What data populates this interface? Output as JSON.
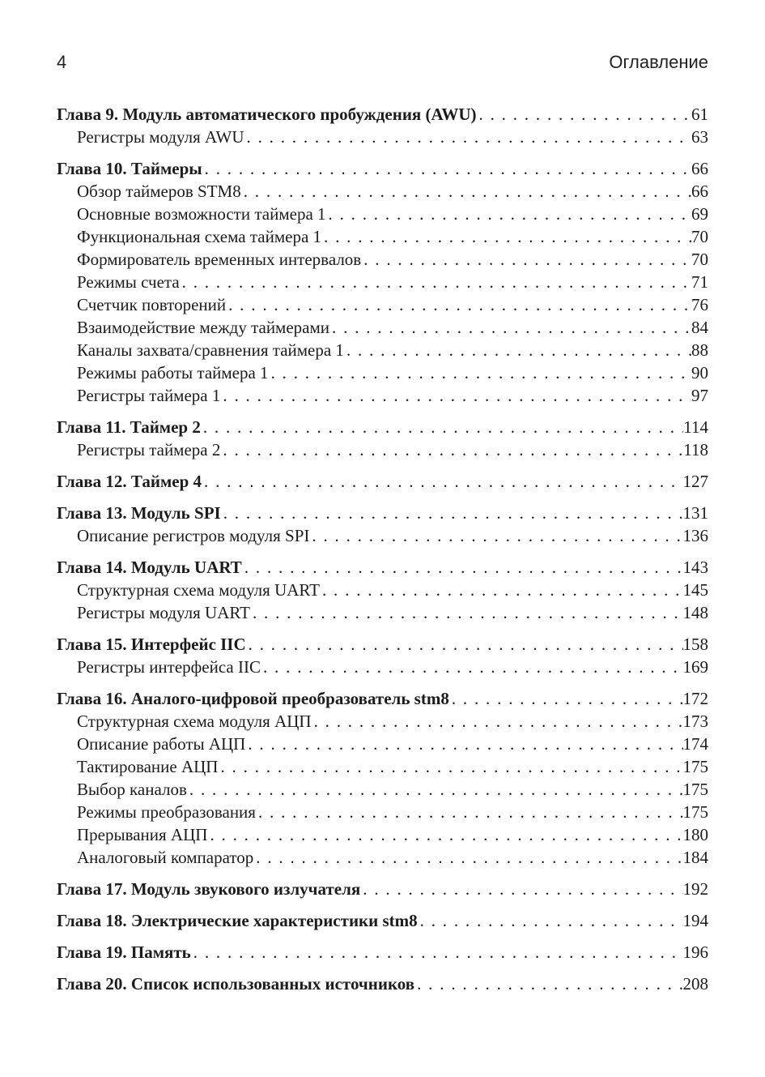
{
  "header": {
    "page_number": "4",
    "title": "Оглавление"
  },
  "colors": {
    "text": "#1c1c1c",
    "background": "#ffffff"
  },
  "toc": {
    "entries": [
      {
        "level": "chapter",
        "label": "Глава 9. Модуль автоматического пробуждения (AWU)",
        "page": "61"
      },
      {
        "level": "sub",
        "label": "Регистры модуля AWU",
        "page": "63"
      },
      {
        "level": "chapter",
        "label": "Глава 10. Таймеры",
        "page": "66"
      },
      {
        "level": "sub",
        "label": "Обзор таймеров STM8",
        "page": "66"
      },
      {
        "level": "sub",
        "label": "Основные возможности таймера 1",
        "page": "69"
      },
      {
        "level": "sub",
        "label": "Функциональная схема таймера 1",
        "page": "70"
      },
      {
        "level": "sub",
        "label": "Формирователь временных интервалов",
        "page": "70"
      },
      {
        "level": "sub",
        "label": "Режимы счета",
        "page": "71"
      },
      {
        "level": "sub",
        "label": "Счетчик повторений",
        "page": "76"
      },
      {
        "level": "sub",
        "label": "Взаимодействие между таймерами",
        "page": "84"
      },
      {
        "level": "sub",
        "label": "Каналы захвата/сравнения таймера 1",
        "page": "88"
      },
      {
        "level": "sub",
        "label": "Режимы работы таймера 1",
        "page": "90"
      },
      {
        "level": "sub",
        "label": "Регистры таймера 1",
        "page": "97"
      },
      {
        "level": "chapter",
        "label": "Глава 11. Таймер 2",
        "page": "114"
      },
      {
        "level": "sub",
        "label": "Регистры таймера 2",
        "page": "118"
      },
      {
        "level": "chapter",
        "label": "Глава 12. Таймер 4",
        "page": "127"
      },
      {
        "level": "chapter",
        "label": "Глава 13. Модуль SPI",
        "page": "131"
      },
      {
        "level": "sub",
        "label": "Описание регистров модуля SPI",
        "page": "136"
      },
      {
        "level": "chapter",
        "label": "Глава 14. Модуль UART",
        "page": "143"
      },
      {
        "level": "sub",
        "label": "Структурная схема модуля UART",
        "page": "145"
      },
      {
        "level": "sub",
        "label": "Регистры модуля UART",
        "page": "148"
      },
      {
        "level": "chapter",
        "label": "Глава 15. Интерфейс IIC",
        "page": "158"
      },
      {
        "level": "sub",
        "label": "Регистры интерфейса IIC",
        "page": "169"
      },
      {
        "level": "chapter",
        "label": "Глава 16. Аналого-цифровой преобразователь stm8",
        "page": "172"
      },
      {
        "level": "sub",
        "label": "Структурная схема модуля АЦП",
        "page": "173"
      },
      {
        "level": "sub",
        "label": "Описание работы АЦП",
        "page": "174"
      },
      {
        "level": "sub",
        "label": "Тактирование АЦП",
        "page": "175"
      },
      {
        "level": "sub",
        "label": "Выбор каналов",
        "page": "175"
      },
      {
        "level": "sub",
        "label": "Режимы преобразования",
        "page": "175"
      },
      {
        "level": "sub",
        "label": "Прерывания АЦП",
        "page": "180"
      },
      {
        "level": "sub",
        "label": "Аналоговый компаратор",
        "page": "184"
      },
      {
        "level": "chapter",
        "label": "Глава 17. Модуль звукового излучателя",
        "page": "192"
      },
      {
        "level": "chapter",
        "label": "Глава 18. Электрические характеристики stm8",
        "page": "194"
      },
      {
        "level": "chapter",
        "label": "Глава 19. Память",
        "page": "196"
      },
      {
        "level": "chapter",
        "label": "Глава 20. Список использованных источников",
        "page": "208"
      }
    ]
  }
}
